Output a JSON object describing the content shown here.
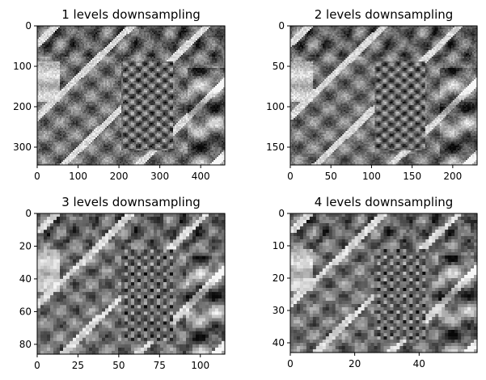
{
  "figure": {
    "background": "#ffffff",
    "colormap": "gray"
  },
  "chart_data": [
    {
      "type": "heatmap",
      "title": "1 levels downsampling",
      "image_size": {
        "width": 459,
        "height": 344
      },
      "xlim": [
        0,
        459
      ],
      "ylim": [
        344,
        0
      ],
      "xticks": [
        0,
        100,
        200,
        300,
        400
      ],
      "yticks": [
        0,
        100,
        200,
        300
      ],
      "xlabel": "",
      "ylabel": ""
    },
    {
      "type": "heatmap",
      "title": "2 levels downsampling",
      "image_size": {
        "width": 230,
        "height": 172
      },
      "xlim": [
        0,
        230
      ],
      "ylim": [
        172,
        0
      ],
      "xticks": [
        0,
        50,
        100,
        150,
        200
      ],
      "yticks": [
        0,
        50,
        100,
        150
      ],
      "xlabel": "",
      "ylabel": ""
    },
    {
      "type": "heatmap",
      "title": "3 levels downsampling",
      "image_size": {
        "width": 115,
        "height": 86
      },
      "xlim": [
        0,
        115
      ],
      "ylim": [
        86,
        0
      ],
      "xticks": [
        0,
        25,
        50,
        75,
        100
      ],
      "yticks": [
        0,
        20,
        40,
        60,
        80
      ],
      "xlabel": "",
      "ylabel": ""
    },
    {
      "type": "heatmap",
      "title": "4 levels downsampling",
      "image_size": {
        "width": 58,
        "height": 43
      },
      "xlim": [
        0,
        58
      ],
      "ylim": [
        43,
        0
      ],
      "xticks": [
        0,
        20,
        40
      ],
      "yticks": [
        0,
        10,
        20,
        30,
        40
      ],
      "xlabel": "",
      "ylabel": ""
    }
  ]
}
